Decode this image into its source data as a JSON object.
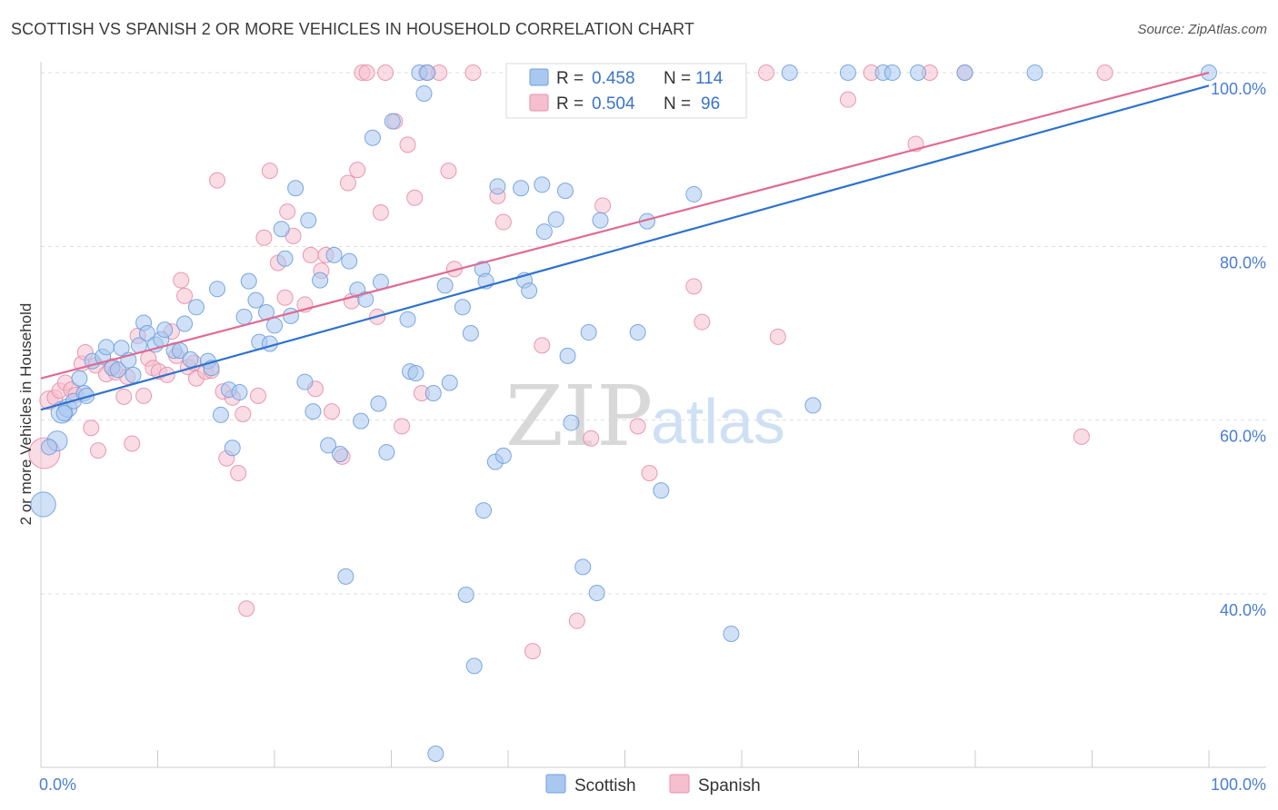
{
  "title": "SCOTTISH VS SPANISH 2 OR MORE VEHICLES IN HOUSEHOLD CORRELATION CHART",
  "source": "Source: ZipAtlas.com",
  "watermark": {
    "zip": "ZIP",
    "atlas": "atlas"
  },
  "colors": {
    "scottish_fill": "#a9c8f0",
    "scottish_stroke": "#6f9fdd",
    "scottish_line": "#2e72cc",
    "spanish_fill": "#f6bfd0",
    "spanish_stroke": "#e58faa",
    "spanish_line": "#e06a94",
    "axis_text": "#4a7ed0",
    "grid": "#dddddd"
  },
  "legend": {
    "rows": [
      {
        "r_label": "R =",
        "r_value": "0.458",
        "n_label": "N =",
        "n_value": "114"
      },
      {
        "r_label": "R =",
        "r_value": "0.504",
        "n_label": "N =",
        "n_value": "96"
      }
    ]
  },
  "bottom_legend": {
    "scottish": "Scottish",
    "spanish": "Spanish"
  },
  "chart_data": {
    "type": "scatter",
    "title": "SCOTTISH VS SPANISH 2 OR MORE VEHICLES IN HOUSEHOLD CORRELATION CHART",
    "xlabel": "",
    "ylabel": "2 or more Vehicles in Household",
    "xlim": [
      0,
      100
    ],
    "ylim": [
      18,
      102
    ],
    "x_tick_labels": [
      "0.0%",
      "100.0%"
    ],
    "y_tick_labels": [
      {
        "value": 40,
        "label": "40.0%"
      },
      {
        "value": 60,
        "label": "60.0%"
      },
      {
        "value": 80,
        "label": "80.0%"
      },
      {
        "value": 100,
        "label": "100.0%"
      }
    ],
    "series": [
      {
        "name": "Scottish",
        "r": 0.458,
        "n": 114,
        "trend": {
          "x": [
            0,
            100
          ],
          "y": [
            61.2,
            98.5
          ]
        },
        "points": [
          [
            0.2,
            50.3,
            1.6
          ],
          [
            1.4,
            57.6,
            1.3
          ],
          [
            1.8,
            60.9,
            1.4
          ],
          [
            2.3,
            61.4,
            1.2
          ],
          [
            2.8,
            62.2,
            1.0
          ],
          [
            3.3,
            64.8,
            1.0
          ],
          [
            3.7,
            63.1,
            1.0
          ],
          [
            4.4,
            66.8,
            1.0
          ],
          [
            5.3,
            67.3,
            1.0
          ],
          [
            5.6,
            68.4,
            1.0
          ],
          [
            6.1,
            66.0,
            1.0
          ],
          [
            6.6,
            65.8,
            1.0
          ],
          [
            6.9,
            68.3,
            1.0
          ],
          [
            7.5,
            66.9,
            1.0
          ],
          [
            7.9,
            65.2,
            1.0
          ],
          [
            8.4,
            68.6,
            1.0
          ],
          [
            8.8,
            71.2,
            1.0
          ],
          [
            9.1,
            70.0,
            1.0
          ],
          [
            9.8,
            68.7,
            1.0
          ],
          [
            10.3,
            69.3,
            1.0
          ],
          [
            10.6,
            70.4,
            1.0
          ],
          [
            11.4,
            68.0,
            1.0
          ],
          [
            11.9,
            68.0,
            1.0
          ],
          [
            12.3,
            71.1,
            1.0
          ],
          [
            12.8,
            67.0,
            1.0
          ],
          [
            13.3,
            73.0,
            1.0
          ],
          [
            14.3,
            66.8,
            1.0
          ],
          [
            14.6,
            66.0,
            1.0
          ],
          [
            15.1,
            75.1,
            1.0
          ],
          [
            15.4,
            60.6,
            1.0
          ],
          [
            16.1,
            63.5,
            1.0
          ],
          [
            16.4,
            56.8,
            1.0
          ],
          [
            17.0,
            63.2,
            1.0
          ],
          [
            17.4,
            71.9,
            1.0
          ],
          [
            17.8,
            76.0,
            1.0
          ],
          [
            18.4,
            73.8,
            1.0
          ],
          [
            18.7,
            69.0,
            1.0
          ],
          [
            19.3,
            72.4,
            1.0
          ],
          [
            19.6,
            68.8,
            1.0
          ],
          [
            20.0,
            70.9,
            1.0
          ],
          [
            20.6,
            82.0,
            1.0
          ],
          [
            21.4,
            72.0,
            1.0
          ],
          [
            21.8,
            86.7,
            1.0
          ],
          [
            22.6,
            64.4,
            1.0
          ],
          [
            22.9,
            83.0,
            1.0
          ],
          [
            23.3,
            61.0,
            1.0
          ],
          [
            23.9,
            76.1,
            1.0
          ],
          [
            24.6,
            57.1,
            1.0
          ],
          [
            25.1,
            79.0,
            1.0
          ],
          [
            25.6,
            56.1,
            1.0
          ],
          [
            26.1,
            42.0,
            1.0
          ],
          [
            26.4,
            78.3,
            1.0
          ],
          [
            27.1,
            75.0,
            1.0
          ],
          [
            27.4,
            59.9,
            1.0
          ],
          [
            27.8,
            73.9,
            1.0
          ],
          [
            28.4,
            92.5,
            1.0
          ],
          [
            28.9,
            61.9,
            1.0
          ],
          [
            29.1,
            75.9,
            1.0
          ],
          [
            29.6,
            56.3,
            1.0
          ],
          [
            30.1,
            94.4,
            1.0
          ],
          [
            31.4,
            71.6,
            1.0
          ],
          [
            31.6,
            65.6,
            1.0
          ],
          [
            32.1,
            65.4,
            1.0
          ],
          [
            32.4,
            100.0,
            1.0
          ],
          [
            32.8,
            97.6,
            1.0
          ],
          [
            33.1,
            100.0,
            1.0
          ],
          [
            33.6,
            63.1,
            1.0
          ],
          [
            33.8,
            21.6,
            1.0
          ],
          [
            34.6,
            75.5,
            1.0
          ],
          [
            35.0,
            64.3,
            1.0
          ],
          [
            36.4,
            39.9,
            1.0
          ],
          [
            36.8,
            70.0,
            1.0
          ],
          [
            37.1,
            31.7,
            1.0
          ],
          [
            37.8,
            77.4,
            1.0
          ],
          [
            37.9,
            49.6,
            1.0
          ],
          [
            38.1,
            76.0,
            1.0
          ],
          [
            38.9,
            55.2,
            1.0
          ],
          [
            39.1,
            86.9,
            1.0
          ],
          [
            39.6,
            55.9,
            1.0
          ],
          [
            41.1,
            86.7,
            1.0
          ],
          [
            41.4,
            76.1,
            1.0
          ],
          [
            41.8,
            74.9,
            1.0
          ],
          [
            42.9,
            87.1,
            1.0
          ],
          [
            43.1,
            81.7,
            1.0
          ],
          [
            44.1,
            83.1,
            1.0
          ],
          [
            44.9,
            86.4,
            1.0
          ],
          [
            45.1,
            67.4,
            1.0
          ],
          [
            45.4,
            59.7,
            1.0
          ],
          [
            46.4,
            43.1,
            1.0
          ],
          [
            46.9,
            70.1,
            1.0
          ],
          [
            47.6,
            40.1,
            1.0
          ],
          [
            47.9,
            83.0,
            1.0
          ],
          [
            48.9,
            100.0,
            1.0
          ],
          [
            51.1,
            70.1,
            1.0
          ],
          [
            51.9,
            82.9,
            1.0
          ],
          [
            53.1,
            51.9,
            1.0
          ],
          [
            55.1,
            100.0,
            1.0
          ],
          [
            55.9,
            86.0,
            1.0
          ],
          [
            59.1,
            35.4,
            1.0
          ],
          [
            59.4,
            100.0,
            1.0
          ],
          [
            64.1,
            100.0,
            1.0
          ],
          [
            66.1,
            61.7,
            1.0
          ],
          [
            69.1,
            100.0,
            1.0
          ],
          [
            72.1,
            100.0,
            1.0
          ],
          [
            72.9,
            100.0,
            1.0
          ],
          [
            75.1,
            100.0,
            1.0
          ],
          [
            79.1,
            100.0,
            1.0
          ],
          [
            85.1,
            100.0,
            1.0
          ],
          [
            100.0,
            100.0,
            1.0
          ],
          [
            0.7,
            56.9,
            1.0
          ],
          [
            2.0,
            60.8,
            1.0
          ],
          [
            3.9,
            62.8,
            1.0
          ],
          [
            20.9,
            78.6,
            1.0
          ],
          [
            36.1,
            73.0,
            1.0
          ]
        ]
      },
      {
        "name": "Spanish",
        "r": 0.504,
        "n": 96,
        "trend": {
          "x": [
            0,
            100
          ],
          "y": [
            64.8,
            100.0
          ]
        },
        "points": [
          [
            0.3,
            56.2,
            2.0
          ],
          [
            0.7,
            62.3,
            1.2
          ],
          [
            1.2,
            62.6,
            1.0
          ],
          [
            1.6,
            63.4,
            1.0
          ],
          [
            2.1,
            64.3,
            1.0
          ],
          [
            2.6,
            63.5,
            1.0
          ],
          [
            3.0,
            62.9,
            1.0
          ],
          [
            3.5,
            66.5,
            1.0
          ],
          [
            3.8,
            67.8,
            1.0
          ],
          [
            4.3,
            59.1,
            1.0
          ],
          [
            4.7,
            66.3,
            1.0
          ],
          [
            4.9,
            56.5,
            1.0
          ],
          [
            5.6,
            65.3,
            1.0
          ],
          [
            6.1,
            66.2,
            1.0
          ],
          [
            6.4,
            65.5,
            1.0
          ],
          [
            7.1,
            62.7,
            1.0
          ],
          [
            7.4,
            65.0,
            1.0
          ],
          [
            7.8,
            57.3,
            1.0
          ],
          [
            8.3,
            69.7,
            1.0
          ],
          [
            8.8,
            62.8,
            1.0
          ],
          [
            9.2,
            67.1,
            1.0
          ],
          [
            9.6,
            66.0,
            1.0
          ],
          [
            10.1,
            65.6,
            1.0
          ],
          [
            10.8,
            65.2,
            1.0
          ],
          [
            11.2,
            70.2,
            1.0
          ],
          [
            11.6,
            67.4,
            1.0
          ],
          [
            12.0,
            76.1,
            1.0
          ],
          [
            12.3,
            74.3,
            1.0
          ],
          [
            12.6,
            66.1,
            1.0
          ],
          [
            13.1,
            66.6,
            1.0
          ],
          [
            13.3,
            64.8,
            1.0
          ],
          [
            14.1,
            65.6,
            1.0
          ],
          [
            14.6,
            65.7,
            1.0
          ],
          [
            15.1,
            87.6,
            1.0
          ],
          [
            15.6,
            63.3,
            1.0
          ],
          [
            15.9,
            55.6,
            1.0
          ],
          [
            16.4,
            62.6,
            1.0
          ],
          [
            16.9,
            53.9,
            1.0
          ],
          [
            17.3,
            60.7,
            1.0
          ],
          [
            17.6,
            38.3,
            1.0
          ],
          [
            18.6,
            62.8,
            1.0
          ],
          [
            19.1,
            81.0,
            1.0
          ],
          [
            19.6,
            88.7,
            1.0
          ],
          [
            20.3,
            78.1,
            1.0
          ],
          [
            20.9,
            74.1,
            1.0
          ],
          [
            21.1,
            84.0,
            1.0
          ],
          [
            21.6,
            81.2,
            1.0
          ],
          [
            22.6,
            73.3,
            1.0
          ],
          [
            23.1,
            79.0,
            1.0
          ],
          [
            23.5,
            63.6,
            1.0
          ],
          [
            24.0,
            77.2,
            1.0
          ],
          [
            24.4,
            79.0,
            1.0
          ],
          [
            24.9,
            61.0,
            1.0
          ],
          [
            25.8,
            55.8,
            1.0
          ],
          [
            26.3,
            87.3,
            1.0
          ],
          [
            26.6,
            73.7,
            1.0
          ],
          [
            27.1,
            88.8,
            1.0
          ],
          [
            27.5,
            100.0,
            1.0
          ],
          [
            27.9,
            100.0,
            1.0
          ],
          [
            28.8,
            71.9,
            1.0
          ],
          [
            29.1,
            83.9,
            1.0
          ],
          [
            29.5,
            100.0,
            1.0
          ],
          [
            30.3,
            94.4,
            1.0
          ],
          [
            30.9,
            59.3,
            1.0
          ],
          [
            31.4,
            91.7,
            1.0
          ],
          [
            32.0,
            85.6,
            1.0
          ],
          [
            32.6,
            63.1,
            1.0
          ],
          [
            33.0,
            100.0,
            1.0
          ],
          [
            34.1,
            100.0,
            1.0
          ],
          [
            34.9,
            88.7,
            1.0
          ],
          [
            35.4,
            77.4,
            1.0
          ],
          [
            37.0,
            100.0,
            1.0
          ],
          [
            39.1,
            85.8,
            1.0
          ],
          [
            39.6,
            82.8,
            1.0
          ],
          [
            41.1,
            100.0,
            1.0
          ],
          [
            42.1,
            33.4,
            1.0
          ],
          [
            42.9,
            68.6,
            1.0
          ],
          [
            44.1,
            100.0,
            1.0
          ],
          [
            45.1,
            100.0,
            1.0
          ],
          [
            45.9,
            36.9,
            1.0
          ],
          [
            47.1,
            57.9,
            1.0
          ],
          [
            48.1,
            84.7,
            1.0
          ],
          [
            51.1,
            59.3,
            1.0
          ],
          [
            52.1,
            53.9,
            1.0
          ],
          [
            55.9,
            75.4,
            1.0
          ],
          [
            56.6,
            71.3,
            1.0
          ],
          [
            63.1,
            69.6,
            1.0
          ],
          [
            69.1,
            96.9,
            1.0
          ],
          [
            71.1,
            100.0,
            1.0
          ],
          [
            74.9,
            91.8,
            1.0
          ],
          [
            76.1,
            100.0,
            1.0
          ],
          [
            79.1,
            100.0,
            1.0
          ],
          [
            89.1,
            58.1,
            1.0
          ],
          [
            91.1,
            100.0,
            1.0
          ],
          [
            62.1,
            100.0,
            1.0
          ],
          [
            54.9,
            100.0,
            1.0
          ]
        ]
      }
    ]
  }
}
